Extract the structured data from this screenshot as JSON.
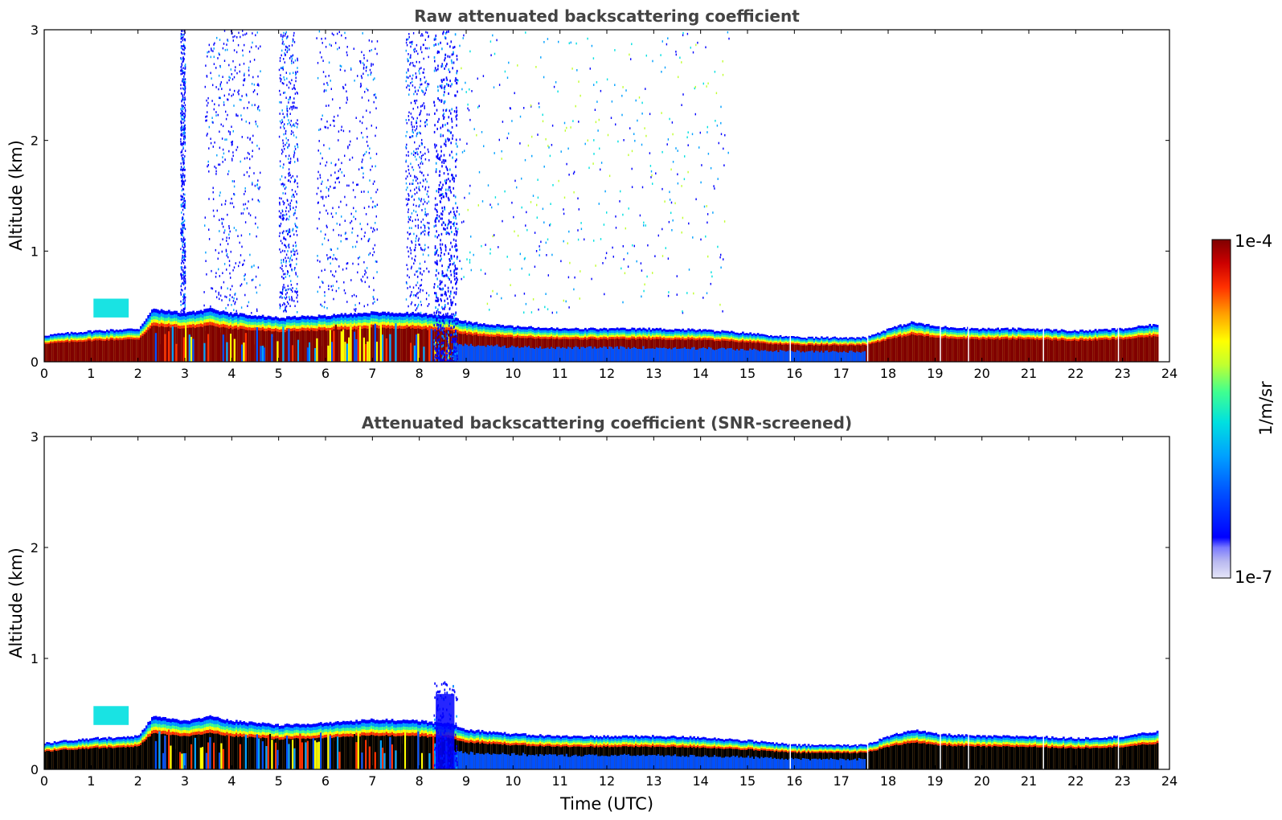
{
  "chart_data": [
    {
      "type": "heatmap",
      "title": "Raw attenuated backscattering coefficient",
      "xlabel": "",
      "ylabel": "Altitude (km)",
      "xlim": [
        0,
        24
      ],
      "ylim": [
        0,
        3
      ],
      "xticks": [
        0,
        1,
        2,
        3,
        4,
        5,
        6,
        7,
        8,
        9,
        10,
        11,
        12,
        13,
        14,
        15,
        16,
        17,
        18,
        19,
        20,
        21,
        22,
        23,
        24
      ],
      "yticks": [
        0,
        1,
        2,
        3
      ],
      "boundary_layer_top_km": {
        "hours": [
          0,
          1,
          2,
          2.3,
          3,
          3.5,
          4,
          5,
          6,
          7,
          8,
          8.3,
          8.6,
          9,
          10,
          11,
          12,
          13,
          14,
          15,
          16,
          17,
          17.5,
          18,
          18.5,
          19,
          20,
          21,
          22,
          23,
          23.7
        ],
        "km": [
          0.24,
          0.28,
          0.3,
          0.48,
          0.44,
          0.48,
          0.44,
          0.4,
          0.42,
          0.45,
          0.44,
          0.42,
          0.42,
          0.36,
          0.32,
          0.3,
          0.3,
          0.3,
          0.29,
          0.26,
          0.22,
          0.22,
          0.22,
          0.3,
          0.36,
          0.32,
          0.3,
          0.3,
          0.28,
          0.3,
          0.34
        ]
      }
    },
    {
      "type": "heatmap",
      "title": "Attenuated backscattering coefficient (SNR-screened)",
      "xlabel": "Time (UTC)",
      "ylabel": "Altitude (km)",
      "xlim": [
        0,
        24
      ],
      "ylim": [
        0,
        3
      ],
      "xticks": [
        0,
        1,
        2,
        3,
        4,
        5,
        6,
        7,
        8,
        9,
        10,
        11,
        12,
        13,
        14,
        15,
        16,
        17,
        18,
        19,
        20,
        21,
        22,
        23,
        24
      ],
      "yticks": [
        0,
        1,
        2,
        3
      ],
      "boundary_layer_top_km": {
        "hours": [
          0,
          1,
          2,
          2.3,
          3,
          3.5,
          4,
          5,
          6,
          7,
          8,
          8.3,
          8.6,
          9,
          10,
          11,
          12,
          13,
          14,
          15,
          16,
          17,
          17.5,
          18,
          18.5,
          19,
          20,
          21,
          22,
          23,
          23.7
        ],
        "km": [
          0.24,
          0.28,
          0.3,
          0.48,
          0.44,
          0.48,
          0.44,
          0.4,
          0.42,
          0.45,
          0.44,
          0.42,
          0.42,
          0.36,
          0.32,
          0.3,
          0.3,
          0.3,
          0.29,
          0.26,
          0.22,
          0.22,
          0.22,
          0.3,
          0.36,
          0.32,
          0.3,
          0.3,
          0.28,
          0.3,
          0.34
        ]
      }
    }
  ],
  "colorbar": {
    "label": "1/m/sr",
    "max_label": "1e-4",
    "min_label": "1e-7",
    "scale": "log",
    "range": [
      1e-07,
      0.0001
    ],
    "colors": [
      "#e6e6f8",
      "#b8b8f0",
      "#7a7aff",
      "#0000ff",
      "#0050ff",
      "#00a0ff",
      "#00e0e0",
      "#40ff90",
      "#c0ff30",
      "#ffff00",
      "#ffa000",
      "#ff3000",
      "#cc0000",
      "#800000"
    ]
  }
}
